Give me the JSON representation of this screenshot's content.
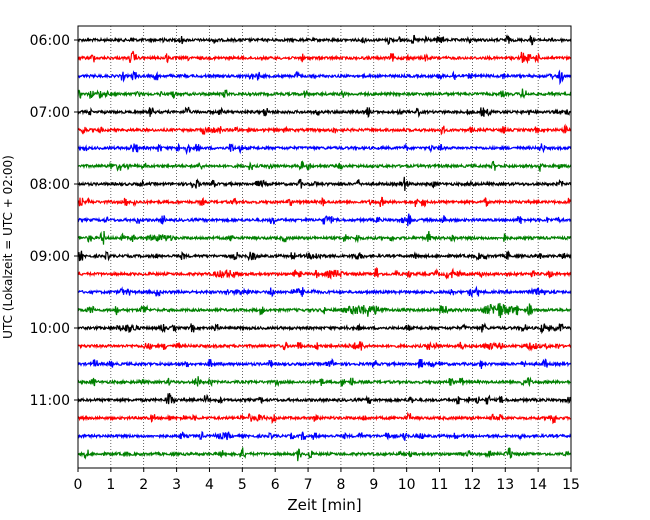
{
  "chart_data": {
    "type": "line",
    "title": "",
    "xlabel": "Zeit  [min]",
    "ylabel": "UTC (Lokalzeit = UTC + 02:00)",
    "xlim": [
      0,
      15
    ],
    "x_ticks": [
      0,
      1,
      2,
      3,
      4,
      5,
      6,
      7,
      8,
      9,
      10,
      11,
      12,
      13,
      14,
      15
    ],
    "x_tick_labels": [
      "0",
      "1",
      "2",
      "3",
      "4",
      "5",
      "6",
      "7",
      "8",
      "9",
      "10",
      "11",
      "12",
      "13",
      "14",
      "15"
    ],
    "y_ticks": [
      "06:00",
      "07:00",
      "08:00",
      "09:00",
      "10:00",
      "11:00"
    ],
    "grid": "vertical dotted",
    "trace_colors": [
      "#000000",
      "#ff0000",
      "#0000ff",
      "#008000"
    ],
    "traces": [
      {
        "start": "06:00",
        "color": "#000000",
        "events": []
      },
      {
        "start": "06:15",
        "color": "#ff0000",
        "events": []
      },
      {
        "start": "06:30",
        "color": "#0000ff",
        "events": []
      },
      {
        "start": "06:45",
        "color": "#008000",
        "events": []
      },
      {
        "start": "07:00",
        "color": "#000000",
        "events": []
      },
      {
        "start": "07:15",
        "color": "#ff0000",
        "events": []
      },
      {
        "start": "07:30",
        "color": "#0000ff",
        "events": []
      },
      {
        "start": "07:45",
        "color": "#008000",
        "events": []
      },
      {
        "start": "08:00",
        "color": "#000000",
        "events": []
      },
      {
        "start": "08:15",
        "color": "#ff0000",
        "events": []
      },
      {
        "start": "08:30",
        "color": "#0000ff",
        "events": []
      },
      {
        "start": "08:45",
        "color": "#008000",
        "events": [
          {
            "t": 2.5,
            "width": 1.0,
            "amp": 2.5
          }
        ]
      },
      {
        "start": "09:00",
        "color": "#000000",
        "events": [
          {
            "t": 7.2,
            "width": 0.6,
            "amp": 2.5
          },
          {
            "t": 8.5,
            "width": 0.5,
            "amp": 2.5
          }
        ]
      },
      {
        "start": "09:15",
        "color": "#ff0000",
        "events": [
          {
            "t": 4.5,
            "width": 0.9,
            "amp": 3.0
          },
          {
            "t": 7.8,
            "width": 0.7,
            "amp": 3.0
          }
        ]
      },
      {
        "start": "09:30",
        "color": "#0000ff",
        "events": [
          {
            "t": 5.0,
            "width": 0.7,
            "amp": 2.0
          },
          {
            "t": 14.0,
            "width": 0.6,
            "amp": 2.0
          }
        ]
      },
      {
        "start": "09:45",
        "color": "#008000",
        "events": [
          {
            "t": 8.7,
            "width": 1.5,
            "amp": 4.0
          },
          {
            "t": 12.8,
            "width": 1.2,
            "amp": 5.0
          }
        ]
      },
      {
        "start": "10:00",
        "color": "#000000",
        "events": [
          {
            "t": 1.5,
            "width": 0.8,
            "amp": 3.0
          }
        ]
      },
      {
        "start": "10:15",
        "color": "#ff0000",
        "events": [
          {
            "t": 8.5,
            "width": 0.6,
            "amp": 2.5
          },
          {
            "t": 12.5,
            "width": 0.6,
            "amp": 2.5
          },
          {
            "t": 13.8,
            "width": 0.6,
            "amp": 2.5
          }
        ]
      },
      {
        "start": "10:30",
        "color": "#0000ff",
        "events": []
      },
      {
        "start": "10:45",
        "color": "#008000",
        "events": []
      },
      {
        "start": "11:00",
        "color": "#000000",
        "events": []
      },
      {
        "start": "11:15",
        "color": "#ff0000",
        "events": [
          {
            "t": 5.5,
            "width": 0.5,
            "amp": 2.0
          }
        ]
      },
      {
        "start": "11:30",
        "color": "#0000ff",
        "events": [
          {
            "t": 4.4,
            "width": 0.6,
            "amp": 2.0
          }
        ]
      },
      {
        "start": "11:45",
        "color": "#008000",
        "events": [
          {
            "t": 13.1,
            "width": 0.3,
            "amp": 2.0
          }
        ]
      }
    ]
  }
}
